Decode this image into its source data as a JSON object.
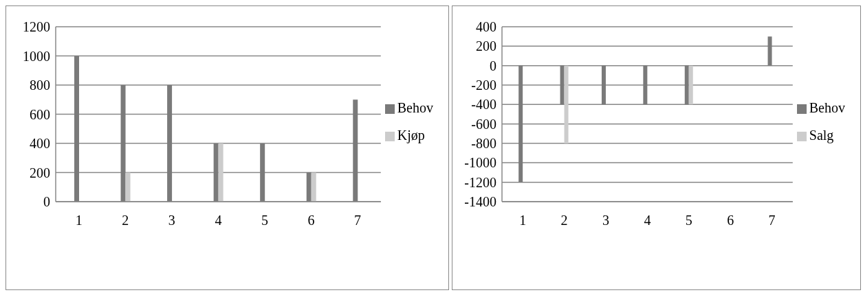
{
  "chart_data": [
    {
      "type": "bar",
      "categories": [
        "1",
        "2",
        "3",
        "4",
        "5",
        "6",
        "7"
      ],
      "ylim": [
        0,
        1200
      ],
      "yticks": [
        0,
        200,
        400,
        600,
        800,
        1000,
        1200
      ],
      "grid": "y",
      "legend": "right",
      "series": [
        {
          "name": "Behov",
          "color": "#7a7a7a",
          "values": [
            1000,
            800,
            800,
            400,
            400,
            200,
            700
          ]
        },
        {
          "name": "Kjøp",
          "color": "#cccccc",
          "values": [
            0,
            200,
            0,
            400,
            0,
            200,
            0
          ]
        }
      ]
    },
    {
      "type": "bar",
      "categories": [
        "1",
        "2",
        "3",
        "4",
        "5",
        "6",
        "7"
      ],
      "ylim": [
        -1400,
        400
      ],
      "yticks": [
        -1400,
        -1200,
        -1000,
        -800,
        -600,
        -400,
        -200,
        0,
        200,
        400
      ],
      "grid": "y",
      "legend": "right",
      "series": [
        {
          "name": "Behov",
          "color": "#7a7a7a",
          "values": [
            -1200,
            -400,
            -400,
            -400,
            -400,
            0,
            300
          ]
        },
        {
          "name": "Salg",
          "color": "#cccccc",
          "values": [
            0,
            -800,
            0,
            0,
            -400,
            0,
            0
          ]
        }
      ]
    }
  ]
}
